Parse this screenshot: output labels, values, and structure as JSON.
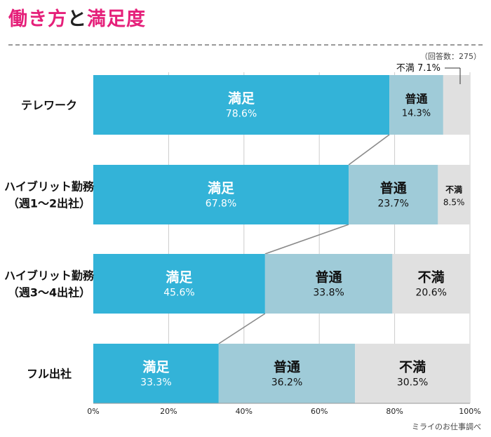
{
  "header": {
    "title_part1": "働き方",
    "title_part2": "と",
    "title_part3": "満足度",
    "sample_note": "（回答数：275）",
    "source": "ミライのお仕事調べ"
  },
  "colors": {
    "satisfied": "#33b3d8",
    "neutral": "#9fcbd8",
    "dissatisfied": "#e0e0e0",
    "title_accent": "#e5207a",
    "grid": "#cccccc",
    "connector": "#8a8a8a"
  },
  "chart_data": {
    "type": "bar",
    "orientation": "horizontal",
    "stacked": true,
    "title": "働き方と満足度",
    "categories": [
      [
        "テレワーク"
      ],
      [
        "ハイブリット勤務",
        "（週1〜2出社）"
      ],
      [
        "ハイブリット勤務",
        "（週3〜4出社）"
      ],
      [
        "フル出社"
      ]
    ],
    "series": [
      {
        "name": "満足",
        "color": "#33b3d8",
        "values": [
          78.6,
          67.8,
          45.6,
          33.3
        ],
        "labels": [
          "78.6%",
          "67.8%",
          "45.6%",
          "33.3%"
        ]
      },
      {
        "name": "普通",
        "color": "#9fcbd8",
        "values": [
          14.3,
          23.7,
          33.8,
          36.2
        ],
        "labels": [
          "14.3%",
          "23.7%",
          "33.8%",
          "36.2%"
        ]
      },
      {
        "name": "不満",
        "color": "#e0e0e0",
        "values": [
          7.1,
          8.5,
          20.6,
          30.5
        ],
        "labels": [
          "7.1%",
          "8.5%",
          "20.6%",
          "30.5%"
        ]
      }
    ],
    "xlim": [
      0,
      100
    ],
    "xticks": [
      0,
      20,
      40,
      60,
      80,
      100
    ],
    "xtick_labels": [
      "0%",
      "20%",
      "40%",
      "60%",
      "80%",
      "100%"
    ],
    "grid": true,
    "annotation": "不満 7.1%"
  }
}
